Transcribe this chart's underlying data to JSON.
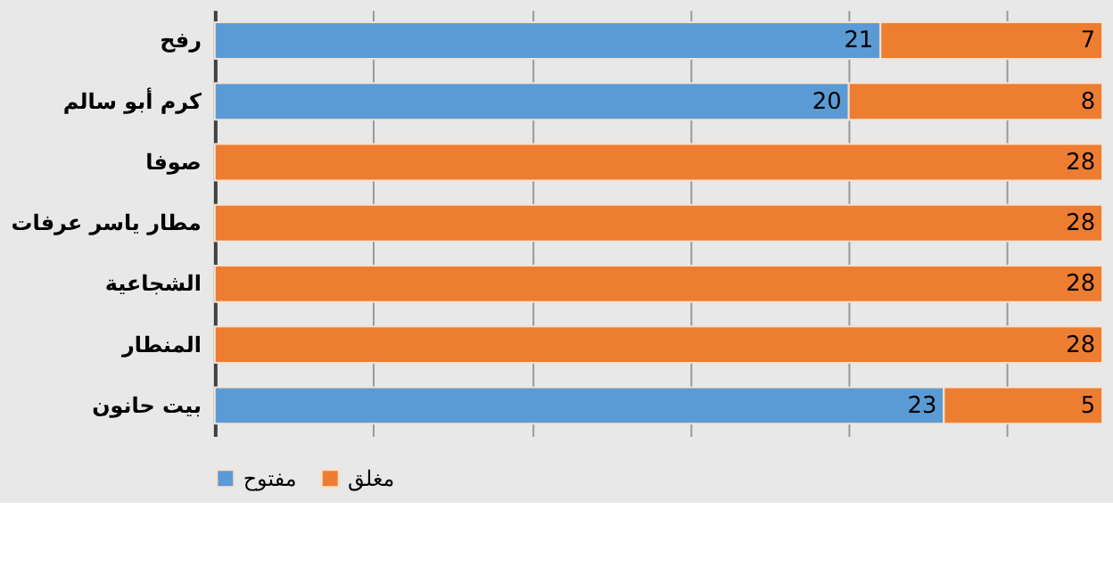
{
  "chart_data": {
    "type": "bar",
    "orientation": "horizontal",
    "stacked": true,
    "data_labels": true,
    "categories": [
      "رفح",
      "كرم أبو سالم",
      "صوفا",
      "مطار ياسر عرفات",
      "الشجاعية",
      "المنطار",
      "بيت حانون"
    ],
    "series": [
      {
        "name": "مفتوح",
        "color": "#5b9bd5",
        "values": [
          21,
          20,
          null,
          null,
          null,
          null,
          23
        ]
      },
      {
        "name": "مغلق",
        "color": "#ed7d31",
        "values": [
          7,
          8,
          28,
          28,
          28,
          28,
          5
        ]
      }
    ],
    "xlim": [
      0,
      28
    ],
    "xticks": [
      {
        "value": 0,
        "label": null
      },
      {
        "value": 5,
        "label": null
      },
      {
        "value": 10,
        "label": null
      },
      {
        "value": 15,
        "label": null
      },
      {
        "value": 20,
        "label": null
      },
      {
        "value": 25,
        "label": null
      }
    ],
    "tick_labels": "y",
    "grid": "x",
    "legend": "bottom"
  }
}
